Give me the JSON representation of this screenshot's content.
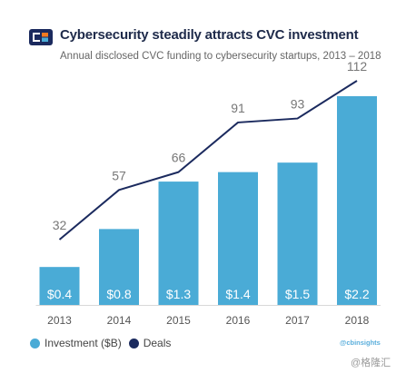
{
  "header": {
    "title": "Cybersecurity steadily attracts CVC investment",
    "subtitle": "Annual disclosed CVC funding to cybersecurity startups,  2013 – 2018"
  },
  "colors": {
    "bar": "#4aabd6",
    "line": "#1b2a5e",
    "logo_dark": "#1b2a5e",
    "logo_accent": "#f47a20",
    "logo_light": "#4aabd6"
  },
  "chart_data": {
    "type": "bar",
    "categories": [
      "2013",
      "2014",
      "2015",
      "2016",
      "2017",
      "2018"
    ],
    "series": [
      {
        "name": "Investment ($B)",
        "type": "bar",
        "values": [
          0.4,
          0.8,
          1.3,
          1.4,
          1.5,
          2.2
        ],
        "labels": [
          "$0.4",
          "$0.8",
          "$1.3",
          "$1.4",
          "$1.5",
          "$2.2"
        ]
      },
      {
        "name": "Deals",
        "type": "line",
        "values": [
          32,
          57,
          66,
          91,
          93,
          112
        ],
        "labels": [
          "32",
          "57",
          "66",
          "91",
          "93",
          "112"
        ]
      }
    ],
    "legend_placement": "bottom-left",
    "grid": false
  },
  "legend": {
    "investment": "Investment ($B)",
    "deals": "Deals"
  },
  "credit": "@cbinsights",
  "watermark": "@格隆汇"
}
